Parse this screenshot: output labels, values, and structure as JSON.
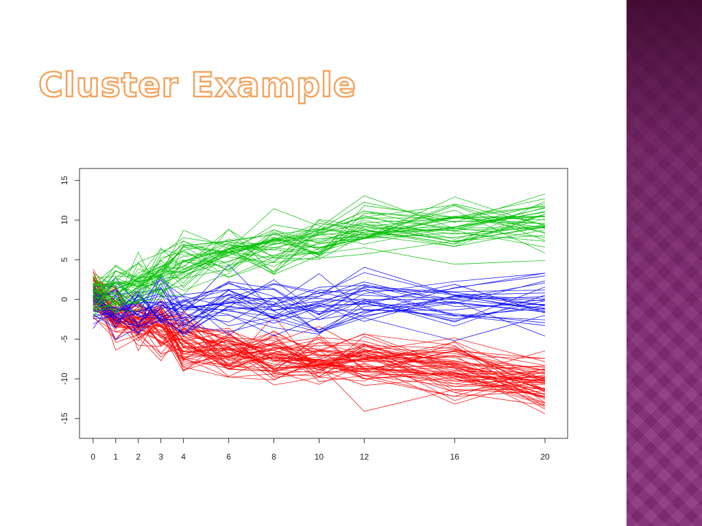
{
  "slide": {
    "title": "Cluster Example",
    "theme_colors": {
      "title_outline": "#f3a45f",
      "side_band": "#8a2f7d"
    }
  },
  "chart_data": {
    "type": "line",
    "title": "",
    "xlabel": "",
    "ylabel": "",
    "grid": false,
    "legend": "none",
    "x": [
      0,
      1,
      2,
      3,
      4,
      6,
      8,
      10,
      12,
      16,
      20
    ],
    "x_ticks": [
      "0",
      "1",
      "2",
      "3",
      "4",
      "6",
      "8",
      "10",
      "12",
      "16",
      "20"
    ],
    "y_ticks": [
      "15",
      "10",
      "5",
      "0",
      "-5",
      "-10",
      "-15"
    ],
    "y_tick_values": [
      15,
      10,
      5,
      0,
      -5,
      -10,
      -15
    ],
    "xlim": [
      -0.6,
      21
    ],
    "ylim": [
      -17.5,
      16.5
    ],
    "clusters": [
      {
        "color": "#ff0000",
        "line_count": 60,
        "centroid": [
          0.5,
          -2,
          -3,
          -3.5,
          -5.5,
          -6.5,
          -7,
          -7.5,
          -8,
          -9,
          -10.5
        ]
      },
      {
        "color": "#0000ff",
        "line_count": 30,
        "centroid": [
          -0.5,
          -1,
          -1.5,
          -1,
          -1.5,
          -0.5,
          -1,
          -0.5,
          0,
          0,
          -0.5
        ]
      },
      {
        "color": "#00c000",
        "line_count": 40,
        "centroid": [
          0.5,
          1.5,
          2,
          3,
          4.5,
          6,
          6.5,
          7.5,
          9,
          9,
          10
        ]
      }
    ]
  }
}
